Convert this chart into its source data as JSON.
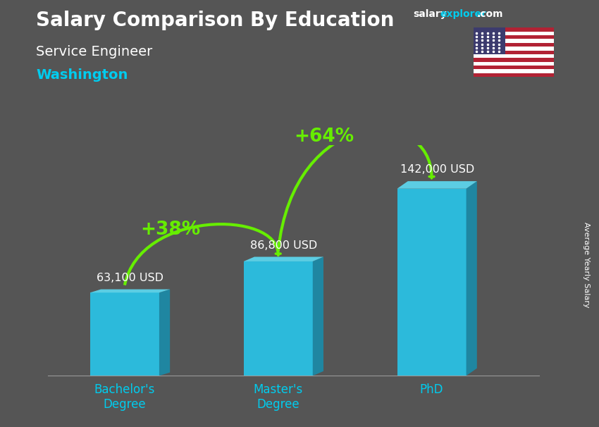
{
  "title": "Salary Comparison By Education",
  "subtitle": "Service Engineer",
  "location": "Washington",
  "watermark_salary": "salary",
  "watermark_explorer": "explorer",
  "watermark_com": ".com",
  "ylabel": "Average Yearly Salary",
  "categories": [
    "Bachelor's\nDegree",
    "Master's\nDegree",
    "PhD"
  ],
  "values": [
    63100,
    86800,
    142000
  ],
  "value_labels": [
    "63,100 USD",
    "86,800 USD",
    "142,000 USD"
  ],
  "bar_front_color": "#29C4E8",
  "bar_side_color": "#1B8BA8",
  "bar_top_color": "#5DD8F0",
  "bg_color": "#555555",
  "title_color": "#FFFFFF",
  "subtitle_color": "#FFFFFF",
  "location_color": "#00CCEE",
  "value_label_color": "#FFFFFF",
  "arrow_color": "#66EE00",
  "pct_labels": [
    "+38%",
    "+64%"
  ],
  "pct_color": "#66EE00",
  "xlabel_color": "#00CCEE",
  "ylim": [
    0,
    175000
  ],
  "figsize": [
    8.5,
    6.06
  ],
  "dpi": 100
}
